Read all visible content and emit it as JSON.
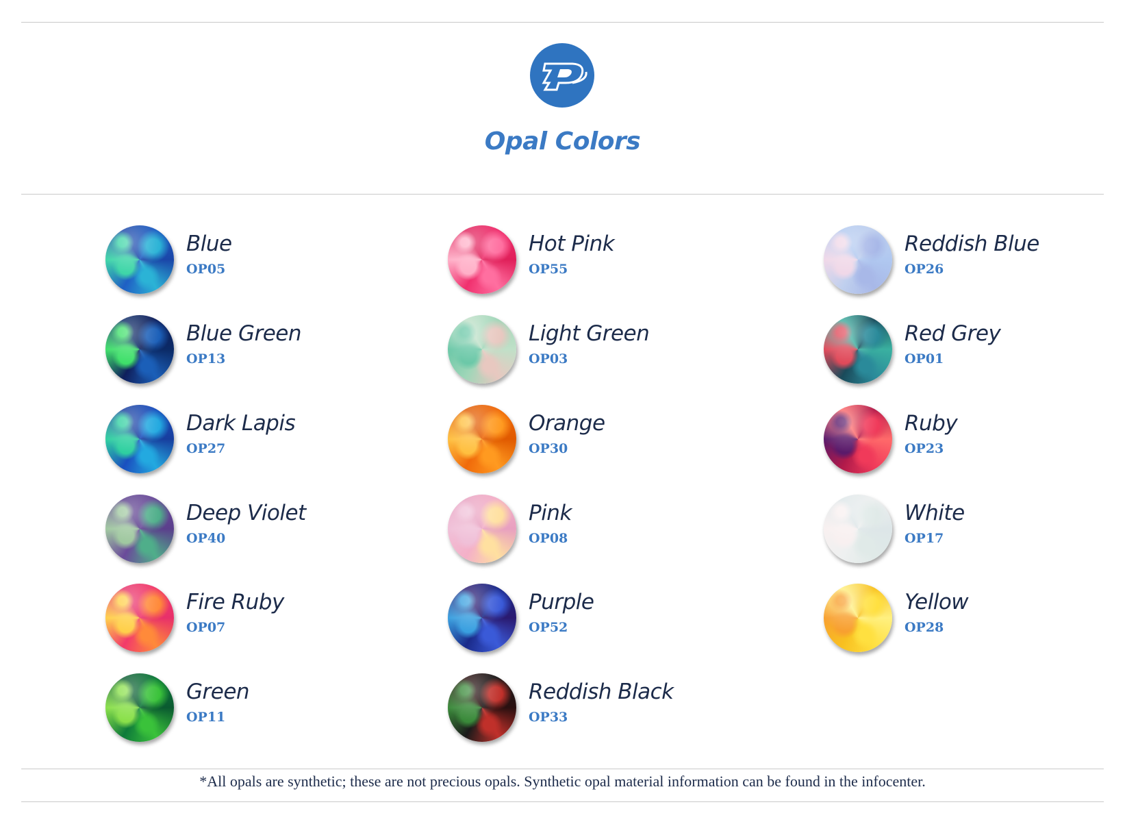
{
  "header": {
    "logo_letter": "P",
    "title": "Opal Colors",
    "brand_color": "#2f74c0"
  },
  "columns": [
    [
      {
        "name": "Blue",
        "code": "OP05",
        "colors": [
          "#1f5fc4",
          "#2bb3d6",
          "#3fd6a8",
          "#1a46a8"
        ]
      },
      {
        "name": "Blue Green",
        "code": "OP13",
        "colors": [
          "#0f1f5c",
          "#1b5fb8",
          "#3fe06a",
          "#0b2a66"
        ]
      },
      {
        "name": "Dark Lapis",
        "code": "OP27",
        "colors": [
          "#1a4fbf",
          "#23a9e0",
          "#2fd0a0",
          "#173e9e"
        ]
      },
      {
        "name": "Deep Violet",
        "code": "OP40",
        "colors": [
          "#6a4a9a",
          "#4fae8a",
          "#a0c8a0",
          "#5b3f8c"
        ]
      },
      {
        "name": "Fire Ruby",
        "code": "OP07",
        "colors": [
          "#f23a6a",
          "#ff8a3a",
          "#ffd04a",
          "#e8306a"
        ]
      },
      {
        "name": "Green",
        "code": "OP11",
        "colors": [
          "#0e7a3a",
          "#3ac23a",
          "#8ae04a",
          "#0a5a30"
        ]
      }
    ],
    [
      {
        "name": "Hot Pink",
        "code": "OP55",
        "colors": [
          "#f0306e",
          "#ff6fa0",
          "#ffb0c8",
          "#e0205a"
        ]
      },
      {
        "name": "Light Green",
        "code": "OP03",
        "colors": [
          "#9fd6b8",
          "#e8c8c0",
          "#6cc8a8",
          "#c0e0c8"
        ]
      },
      {
        "name": "Orange",
        "code": "OP30",
        "colors": [
          "#f06a0a",
          "#ff9a20",
          "#ffc040",
          "#e05a00"
        ]
      },
      {
        "name": "Pink",
        "code": "OP08",
        "colors": [
          "#f4b0c8",
          "#ffe0a0",
          "#f0c0d8",
          "#e8a0c0"
        ]
      },
      {
        "name": "Purple",
        "code": "OP52",
        "colors": [
          "#1a2a8a",
          "#3a5ad8",
          "#3aa0e0",
          "#2a1a70"
        ]
      },
      {
        "name": "Reddish Black",
        "code": "OP33",
        "colors": [
          "#1a1a1a",
          "#c0302a",
          "#3a8a3a",
          "#2a1010"
        ]
      }
    ],
    [
      {
        "name": "Reddish Blue",
        "code": "OP26",
        "colors": [
          "#c0d0ee",
          "#a8b8e8",
          "#f0d8e8",
          "#b0c8f0"
        ]
      },
      {
        "name": "Red Grey",
        "code": "OP01",
        "colors": [
          "#1a4a5a",
          "#2a8a9a",
          "#e04a5a",
          "#3ab0a0"
        ]
      },
      {
        "name": "Ruby",
        "code": "OP23",
        "colors": [
          "#b01a4a",
          "#f03a5a",
          "#5a1a6a",
          "#ff6a6a"
        ]
      },
      {
        "name": "White",
        "code": "OP17",
        "colors": [
          "#eef0f0",
          "#e0eae8",
          "#f8f0f0",
          "#dde6e8"
        ]
      },
      {
        "name": "Yellow",
        "code": "OP28",
        "colors": [
          "#f8c020",
          "#ffe040",
          "#f8a030",
          "#fff080"
        ]
      }
    ]
  ],
  "footer": {
    "note": "*All opals are synthetic; these are not precious opals. Synthetic opal material information can be found in the infocenter."
  }
}
